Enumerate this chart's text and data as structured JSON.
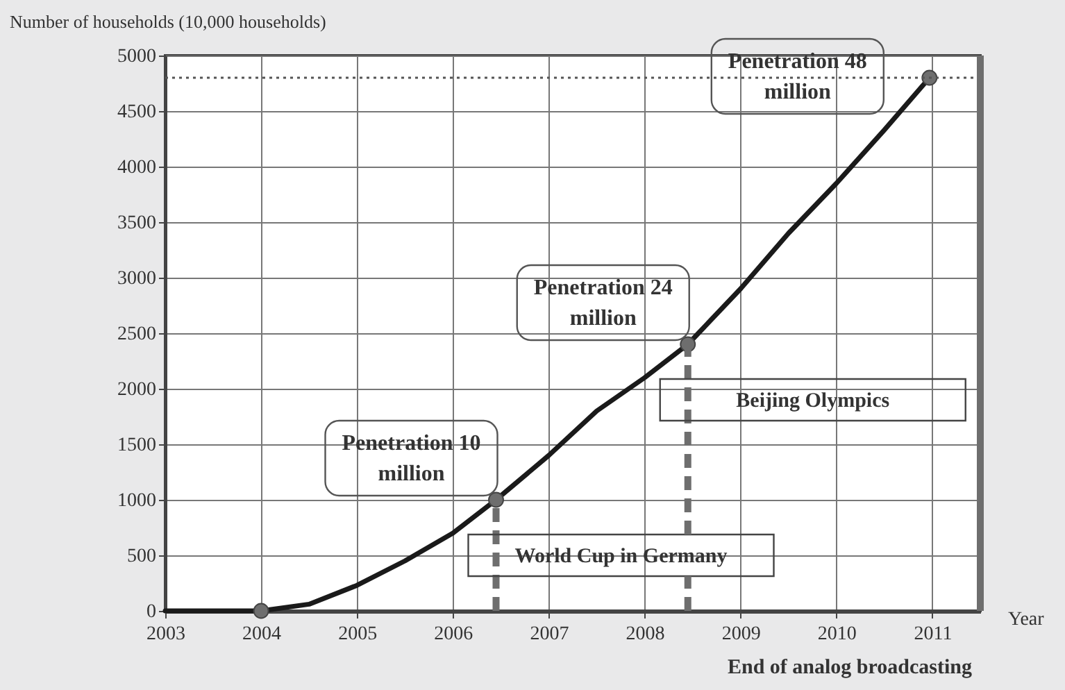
{
  "chart_data": {
    "type": "line",
    "ylabel": "Number of households (10,000 households)",
    "xlabel": "Year",
    "xlim": [
      2003,
      2011.5
    ],
    "xticks": [
      2003,
      2004,
      2005,
      2006,
      2007,
      2008,
      2009,
      2010,
      2011
    ],
    "ylim": [
      0,
      5000
    ],
    "yticks": [
      0,
      500,
      1000,
      1500,
      2000,
      2500,
      3000,
      3500,
      4000,
      4500,
      5000
    ],
    "grid": true,
    "legend": false,
    "series": [
      {
        "color": "#1a1a1a",
        "marker": "none",
        "line_style": "solid",
        "x": [
          2003,
          2004,
          2004.5,
          2005,
          2005.5,
          2006,
          2006.45,
          2007,
          2007.5,
          2008,
          2008.45,
          2009,
          2009.5,
          2010,
          2010.5,
          2010.97
        ],
        "values": [
          0,
          0,
          60,
          230,
          450,
          700,
          1000,
          1400,
          1800,
          2100,
          2400,
          2900,
          3400,
          3850,
          4330,
          4800
        ]
      },
      {
        "type": "scatter",
        "color": "#6e6e6e",
        "marker": "circle",
        "x": [
          2004,
          2006.45,
          2008.45,
          2010.97
        ],
        "values": [
          0,
          1000,
          2400,
          4800
        ]
      }
    ],
    "ref_lines": [
      {
        "axis": "y",
        "value": 4800,
        "color": "#555555",
        "line_style": "dotted"
      },
      {
        "axis": "x",
        "value": 2006.45,
        "label": "World Cup  in Germany",
        "color": "#6e6e6e",
        "line_style": "dashed"
      },
      {
        "axis": "x",
        "value": 2008.45,
        "label": "Beijing Olympics",
        "color": "#6e6e6e",
        "line_style": "dashed"
      },
      {
        "axis": "x",
        "value": 2011.5,
        "label": "End of analog broadcasting",
        "color": "#6e6e6e",
        "line_style": "solid"
      }
    ],
    "annotations": [
      {
        "text": "Penetration  10\nmillion",
        "x": 2006.45,
        "y": 1000
      },
      {
        "text": "Penetration  24\nmillion",
        "x": 2008.45,
        "y": 2400
      },
      {
        "text": "Penetration  48\nmillion",
        "x": 2010.97,
        "y": 4800
      }
    ]
  }
}
